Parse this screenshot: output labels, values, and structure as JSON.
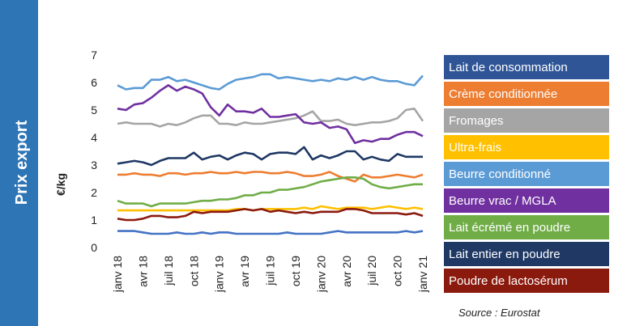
{
  "chart_data": {
    "type": "line",
    "side_title": "Prix export",
    "y_label": "€/kg",
    "source": "Source : Eurostat",
    "ylim": [
      0,
      7
    ],
    "yticks": [
      0,
      1,
      2,
      3,
      4,
      5,
      6,
      7
    ],
    "legend": "right",
    "categories": [
      "janv 18",
      null,
      null,
      "avr 18",
      null,
      null,
      "juil 18",
      null,
      null,
      "oct 18",
      null,
      null,
      "janv 19",
      null,
      null,
      "avr 19",
      null,
      null,
      "juil 19",
      null,
      null,
      "oct 19",
      null,
      null,
      "janv 20",
      null,
      null,
      "avr 20",
      null,
      null,
      "juil 20",
      null,
      null,
      "oct 20",
      null,
      null,
      "janv 21"
    ],
    "series": [
      {
        "name": "Lait de consommation",
        "color": "#2f5597",
        "line_color": "#4472c4",
        "values": [
          0.6,
          0.6,
          0.6,
          0.55,
          0.5,
          0.5,
          0.5,
          0.55,
          0.5,
          0.5,
          0.55,
          0.5,
          0.55,
          0.55,
          0.5,
          0.5,
          0.5,
          0.5,
          0.5,
          0.5,
          0.55,
          0.5,
          0.5,
          0.5,
          0.5,
          0.55,
          0.6,
          0.55,
          0.55,
          0.55,
          0.55,
          0.55,
          0.55,
          0.55,
          0.6,
          0.55,
          0.6
        ]
      },
      {
        "name": "Crème conditionnée",
        "color": "#ed7d31",
        "values": [
          2.65,
          2.65,
          2.7,
          2.65,
          2.65,
          2.6,
          2.7,
          2.7,
          2.65,
          2.7,
          2.7,
          2.75,
          2.7,
          2.7,
          2.75,
          2.7,
          2.75,
          2.75,
          2.7,
          2.7,
          2.75,
          2.7,
          2.6,
          2.6,
          2.65,
          2.75,
          2.6,
          2.5,
          2.4,
          2.65,
          2.55,
          2.55,
          2.6,
          2.65,
          2.6,
          2.55,
          2.65
        ]
      },
      {
        "name": "Fromages",
        "color": "#a5a5a5",
        "values": [
          4.5,
          4.55,
          4.5,
          4.5,
          4.5,
          4.4,
          4.5,
          4.45,
          4.55,
          4.7,
          4.8,
          4.8,
          4.5,
          4.5,
          4.45,
          4.55,
          4.5,
          4.5,
          4.55,
          4.6,
          4.65,
          4.7,
          4.8,
          4.95,
          4.6,
          4.6,
          4.65,
          4.5,
          4.45,
          4.5,
          4.55,
          4.55,
          4.6,
          4.7,
          5.0,
          5.05,
          4.6
        ]
      },
      {
        "name": "Ultra-frais",
        "color": "#ffc000",
        "values": [
          1.35,
          1.35,
          1.35,
          1.35,
          1.35,
          1.35,
          1.35,
          1.35,
          1.35,
          1.35,
          1.35,
          1.35,
          1.35,
          1.35,
          1.4,
          1.4,
          1.35,
          1.4,
          1.4,
          1.4,
          1.4,
          1.4,
          1.45,
          1.4,
          1.5,
          1.45,
          1.4,
          1.45,
          1.45,
          1.45,
          1.4,
          1.45,
          1.5,
          1.45,
          1.4,
          1.45,
          1.4
        ]
      },
      {
        "name": "Beurre conditionné",
        "color": "#5b9bd5",
        "values": [
          5.9,
          5.75,
          5.8,
          5.8,
          6.1,
          6.1,
          6.2,
          6.05,
          6.1,
          6.0,
          5.9,
          5.8,
          5.75,
          5.95,
          6.1,
          6.15,
          6.2,
          6.3,
          6.3,
          6.15,
          6.2,
          6.15,
          6.1,
          6.05,
          6.1,
          6.05,
          6.15,
          6.1,
          6.2,
          6.1,
          6.2,
          6.1,
          6.05,
          6.05,
          5.95,
          5.9,
          6.25
        ]
      },
      {
        "name": "Beurre vrac / MGLA",
        "color": "#7030a0",
        "values": [
          5.05,
          5.0,
          5.2,
          5.25,
          5.45,
          5.7,
          5.9,
          5.7,
          5.85,
          5.75,
          5.6,
          5.1,
          4.8,
          5.2,
          4.95,
          4.95,
          4.9,
          5.05,
          4.75,
          4.75,
          4.8,
          4.85,
          4.55,
          4.5,
          4.55,
          4.35,
          4.4,
          4.3,
          3.8,
          3.9,
          3.85,
          3.95,
          3.95,
          4.1,
          4.2,
          4.2,
          4.05
        ]
      },
      {
        "name": "Lait écrémé en poudre",
        "color": "#70ad47",
        "values": [
          1.7,
          1.6,
          1.6,
          1.6,
          1.5,
          1.6,
          1.6,
          1.6,
          1.6,
          1.65,
          1.7,
          1.7,
          1.75,
          1.75,
          1.8,
          1.9,
          1.9,
          2.0,
          2.0,
          2.1,
          2.1,
          2.15,
          2.2,
          2.3,
          2.4,
          2.45,
          2.5,
          2.55,
          2.55,
          2.5,
          2.3,
          2.2,
          2.15,
          2.2,
          2.25,
          2.3,
          2.3
        ]
      },
      {
        "name": "Lait entier en poudre",
        "color": "#1f3864",
        "values": [
          3.05,
          3.1,
          3.15,
          3.1,
          3.0,
          3.15,
          3.25,
          3.25,
          3.25,
          3.45,
          3.2,
          3.3,
          3.35,
          3.2,
          3.35,
          3.45,
          3.4,
          3.2,
          3.4,
          3.45,
          3.45,
          3.4,
          3.65,
          3.2,
          3.35,
          3.25,
          3.35,
          3.5,
          3.5,
          3.2,
          3.3,
          3.2,
          3.15,
          3.4,
          3.3,
          3.3,
          3.3
        ]
      },
      {
        "name": "Poudre de lactosérum",
        "color": "#8b1a0e",
        "values": [
          1.05,
          1.0,
          1.0,
          1.05,
          1.15,
          1.15,
          1.1,
          1.1,
          1.15,
          1.3,
          1.25,
          1.3,
          1.3,
          1.3,
          1.35,
          1.4,
          1.35,
          1.4,
          1.3,
          1.35,
          1.3,
          1.25,
          1.3,
          1.25,
          1.3,
          1.3,
          1.3,
          1.4,
          1.4,
          1.35,
          1.25,
          1.25,
          1.25,
          1.25,
          1.2,
          1.25,
          1.15
        ]
      }
    ]
  }
}
